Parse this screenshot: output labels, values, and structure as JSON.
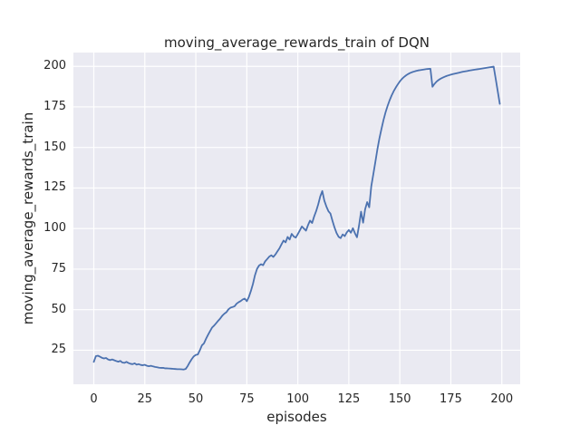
{
  "figure": {
    "title": "moving_average_rewards_train of DQN",
    "xlabel": "episodes",
    "ylabel": "moving_average_rewards_train"
  },
  "style": {
    "fig_bg": "#ffffff",
    "axes_bg": "#eaeaf2",
    "grid_color": "#ffffff",
    "line_color": "#4c72b0",
    "text_color": "#262626"
  },
  "chart_data": {
    "type": "line",
    "title": "moving_average_rewards_train of DQN",
    "xlabel": "episodes",
    "ylabel": "moving_average_rewards_train",
    "x_ticks": [
      0,
      25,
      50,
      75,
      100,
      125,
      150,
      175,
      200
    ],
    "y_ticks": [
      25,
      50,
      75,
      100,
      125,
      150,
      175,
      200
    ],
    "xlim": [
      -10,
      209
    ],
    "ylim": [
      4,
      208.5
    ],
    "grid": true,
    "legend": false,
    "series": [
      {
        "name": "moving_average_rewards_train",
        "color": "#4c72b0",
        "x": [
          0,
          1,
          2,
          3,
          4,
          5,
          6,
          7,
          8,
          9,
          10,
          11,
          12,
          13,
          14,
          15,
          16,
          17,
          18,
          19,
          20,
          21,
          22,
          23,
          24,
          25,
          26,
          27,
          28,
          29,
          30,
          31,
          32,
          33,
          34,
          35,
          36,
          37,
          38,
          39,
          40,
          41,
          42,
          43,
          44,
          45,
          46,
          47,
          48,
          49,
          50,
          51,
          52,
          53,
          54,
          55,
          56,
          57,
          58,
          59,
          60,
          61,
          62,
          63,
          64,
          65,
          66,
          67,
          68,
          69,
          70,
          71,
          72,
          73,
          74,
          75,
          76,
          77,
          78,
          79,
          80,
          81,
          82,
          83,
          84,
          85,
          86,
          87,
          88,
          89,
          90,
          91,
          92,
          93,
          94,
          95,
          96,
          97,
          98,
          99,
          100,
          101,
          102,
          103,
          104,
          105,
          106,
          107,
          108,
          109,
          110,
          111,
          112,
          113,
          114,
          115,
          116,
          117,
          118,
          119,
          120,
          121,
          122,
          123,
          124,
          125,
          126,
          127,
          128,
          129,
          130,
          131,
          132,
          133,
          134,
          135,
          136,
          137,
          138,
          139,
          140,
          141,
          142,
          143,
          144,
          145,
          146,
          147,
          148,
          149,
          150,
          151,
          152,
          153,
          154,
          155,
          156,
          157,
          158,
          159,
          160,
          161,
          162,
          163,
          164,
          165,
          166,
          167,
          168,
          169,
          170,
          171,
          172,
          173,
          174,
          175,
          176,
          177,
          178,
          179,
          180,
          181,
          182,
          183,
          184,
          185,
          186,
          187,
          188,
          189,
          190,
          191,
          192,
          193,
          194,
          195,
          196,
          197,
          198,
          199
        ],
        "y": [
          17.8,
          21.3,
          21.6,
          21.0,
          20.3,
          19.9,
          20.2,
          19.3,
          18.9,
          19.3,
          18.8,
          18.3,
          17.9,
          18.4,
          17.4,
          17.2,
          17.8,
          17.1,
          16.6,
          16.4,
          16.9,
          16.1,
          16.4,
          15.9,
          15.7,
          16.0,
          15.4,
          15.1,
          15.4,
          15.0,
          14.7,
          14.5,
          14.2,
          14.1,
          14.1,
          13.8,
          13.8,
          13.7,
          13.6,
          13.5,
          13.4,
          13.3,
          13.3,
          13.2,
          13.1,
          13.4,
          15.2,
          17.5,
          19.5,
          21.2,
          22.1,
          22.4,
          25.0,
          28.0,
          29.2,
          32.0,
          34.5,
          36.8,
          39.0,
          40.2,
          41.7,
          43.2,
          44.6,
          46.3,
          47.5,
          48.4,
          50.2,
          51.2,
          51.6,
          52.1,
          53.7,
          54.6,
          55.3,
          56.3,
          56.8,
          55.2,
          57.8,
          61.5,
          65.8,
          71.2,
          75.1,
          77.2,
          78.0,
          77.4,
          79.8,
          81.2,
          82.7,
          83.5,
          82.5,
          84.0,
          85.9,
          87.8,
          90.3,
          92.6,
          91.5,
          94.8,
          93.2,
          96.7,
          95.1,
          94.4,
          96.6,
          98.9,
          101.3,
          100.0,
          98.7,
          102.1,
          104.9,
          103.4,
          107.4,
          110.8,
          114.9,
          119.8,
          123.1,
          117.2,
          113.6,
          110.7,
          109.2,
          104.7,
          100.6,
          97.2,
          94.9,
          94.1,
          96.4,
          95.3,
          97.6,
          99.1,
          97.4,
          100.2,
          97.1,
          94.6,
          101.8,
          110.4,
          103.6,
          111.9,
          116.3,
          113.1,
          126.0,
          133.4,
          141.0,
          148.8,
          155.6,
          161.4,
          166.9,
          171.6,
          175.6,
          179.1,
          182.1,
          184.7,
          186.9,
          188.9,
          190.7,
          192.2,
          193.4,
          194.4,
          195.2,
          195.9,
          196.4,
          196.8,
          197.2,
          197.5,
          197.7,
          197.9,
          198.1,
          198.3,
          198.4,
          198.5,
          187.4,
          189.2,
          190.6,
          191.6,
          192.4,
          193.0,
          193.6,
          194.1,
          194.5,
          194.9,
          195.2,
          195.5,
          195.8,
          196.1,
          196.4,
          196.7,
          196.9,
          197.1,
          197.4,
          197.6,
          197.8,
          198.0,
          198.2,
          198.4,
          198.6,
          198.8,
          199.0,
          199.2,
          199.4,
          199.6,
          199.8,
          192.3,
          184.6,
          176.9
        ]
      }
    ]
  }
}
